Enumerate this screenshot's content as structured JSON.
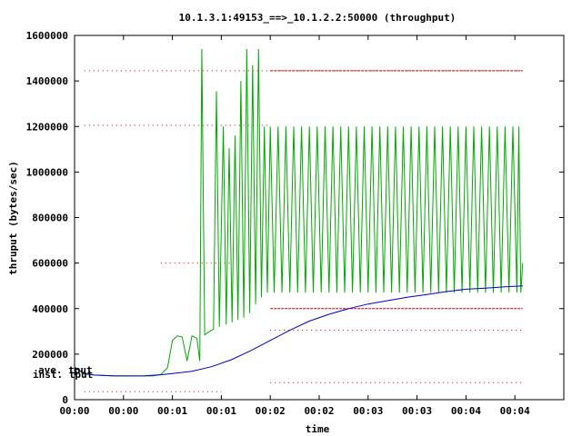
{
  "chart_data": {
    "type": "line",
    "title": "10.1.3.1:49153_==>_10.1.2.2:50000 (throughput)",
    "xlabel": "time",
    "ylabel": "thruput (bytes/sec)",
    "xlim": [
      0,
      5.0
    ],
    "ylim": [
      0,
      1600000
    ],
    "x_ticks": [
      {
        "v": 0.0,
        "label": "00:00"
      },
      {
        "v": 0.5,
        "label": "00:00"
      },
      {
        "v": 1.0,
        "label": "00:01"
      },
      {
        "v": 1.5,
        "label": "00:01"
      },
      {
        "v": 2.0,
        "label": "00:02"
      },
      {
        "v": 2.5,
        "label": "00:02"
      },
      {
        "v": 3.0,
        "label": "00:03"
      },
      {
        "v": 3.5,
        "label": "00:03"
      },
      {
        "v": 4.0,
        "label": "00:04"
      },
      {
        "v": 4.5,
        "label": "00:04"
      }
    ],
    "y_ticks": [
      {
        "v": 0,
        "label": "0"
      },
      {
        "v": 200000,
        "label": "200000"
      },
      {
        "v": 400000,
        "label": "400000"
      },
      {
        "v": 600000,
        "label": "600000"
      },
      {
        "v": 800000,
        "label": "800000"
      },
      {
        "v": 1000000,
        "label": "1000000"
      },
      {
        "v": 1200000,
        "label": "1200000"
      },
      {
        "v": 1400000,
        "label": "1400000"
      },
      {
        "v": 1600000,
        "label": "1600000"
      }
    ],
    "grid": false,
    "series": [
      {
        "name": "inst. tput",
        "color": "#00aa00",
        "style": "line",
        "points": [
          [
            0.0,
            145000
          ],
          [
            0.1,
            112000
          ],
          [
            0.2,
            108000
          ],
          [
            0.4,
            105000
          ],
          [
            0.6,
            104000
          ],
          [
            0.8,
            104000
          ],
          [
            0.88,
            110000
          ],
          [
            0.95,
            140000
          ],
          [
            1.0,
            260000
          ],
          [
            1.05,
            280000
          ],
          [
            1.1,
            275000
          ],
          [
            1.15,
            170000
          ],
          [
            1.2,
            280000
          ],
          [
            1.25,
            270000
          ],
          [
            1.28,
            170000
          ],
          [
            1.3,
            1540000
          ],
          [
            1.33,
            285000
          ],
          [
            1.38,
            300000
          ],
          [
            1.42,
            310000
          ],
          [
            1.45,
            1355000
          ],
          [
            1.48,
            320000
          ],
          [
            1.52,
            1200000
          ],
          [
            1.55,
            330000
          ],
          [
            1.58,
            1105000
          ],
          [
            1.61,
            340000
          ],
          [
            1.64,
            1160000
          ],
          [
            1.67,
            350000
          ],
          [
            1.7,
            1400000
          ],
          [
            1.73,
            360000
          ],
          [
            1.76,
            1540000
          ],
          [
            1.79,
            380000
          ],
          [
            1.82,
            1470000
          ],
          [
            1.85,
            420000
          ],
          [
            1.88,
            1540000
          ],
          [
            1.91,
            450000
          ],
          [
            1.94,
            1200000
          ],
          [
            1.97,
            470000
          ],
          [
            2.0,
            1200000
          ],
          [
            2.04,
            470000
          ],
          [
            2.08,
            1200000
          ],
          [
            2.12,
            470000
          ],
          [
            2.16,
            1200000
          ],
          [
            2.2,
            470000
          ],
          [
            2.24,
            1200000
          ],
          [
            2.28,
            470000
          ],
          [
            2.32,
            1200000
          ],
          [
            2.36,
            470000
          ],
          [
            2.4,
            1200000
          ],
          [
            2.44,
            470000
          ],
          [
            2.48,
            1200000
          ],
          [
            2.52,
            470000
          ],
          [
            2.56,
            1200000
          ],
          [
            2.6,
            470000
          ],
          [
            2.64,
            1200000
          ],
          [
            2.68,
            470000
          ],
          [
            2.72,
            1200000
          ],
          [
            2.76,
            470000
          ],
          [
            2.8,
            1200000
          ],
          [
            2.84,
            470000
          ],
          [
            2.88,
            1200000
          ],
          [
            2.92,
            470000
          ],
          [
            2.96,
            1200000
          ],
          [
            3.0,
            470000
          ],
          [
            3.04,
            1200000
          ],
          [
            3.08,
            470000
          ],
          [
            3.12,
            1200000
          ],
          [
            3.16,
            470000
          ],
          [
            3.2,
            1200000
          ],
          [
            3.24,
            470000
          ],
          [
            3.28,
            1200000
          ],
          [
            3.32,
            470000
          ],
          [
            3.36,
            1200000
          ],
          [
            3.4,
            470000
          ],
          [
            3.44,
            1200000
          ],
          [
            3.48,
            470000
          ],
          [
            3.52,
            1200000
          ],
          [
            3.56,
            470000
          ],
          [
            3.6,
            1200000
          ],
          [
            3.64,
            470000
          ],
          [
            3.68,
            1200000
          ],
          [
            3.72,
            470000
          ],
          [
            3.76,
            1200000
          ],
          [
            3.8,
            470000
          ],
          [
            3.84,
            1200000
          ],
          [
            3.88,
            470000
          ],
          [
            3.92,
            1200000
          ],
          [
            3.96,
            470000
          ],
          [
            4.0,
            1200000
          ],
          [
            4.04,
            470000
          ],
          [
            4.08,
            1200000
          ],
          [
            4.12,
            470000
          ],
          [
            4.16,
            1200000
          ],
          [
            4.2,
            470000
          ],
          [
            4.24,
            1200000
          ],
          [
            4.28,
            470000
          ],
          [
            4.32,
            1200000
          ],
          [
            4.36,
            470000
          ],
          [
            4.4,
            1200000
          ],
          [
            4.44,
            470000
          ],
          [
            4.48,
            1200000
          ],
          [
            4.52,
            470000
          ],
          [
            4.54,
            1200000
          ],
          [
            4.56,
            470000
          ],
          [
            4.58,
            600000
          ]
        ]
      },
      {
        "name": "ave. tput",
        "color": "#0000cc",
        "style": "line",
        "points": [
          [
            0.0,
            140000
          ],
          [
            0.1,
            115000
          ],
          [
            0.2,
            108000
          ],
          [
            0.4,
            104000
          ],
          [
            0.7,
            104000
          ],
          [
            0.9,
            110000
          ],
          [
            1.0,
            115000
          ],
          [
            1.2,
            125000
          ],
          [
            1.4,
            145000
          ],
          [
            1.6,
            175000
          ],
          [
            1.8,
            215000
          ],
          [
            2.0,
            260000
          ],
          [
            2.2,
            305000
          ],
          [
            2.4,
            345000
          ],
          [
            2.6,
            375000
          ],
          [
            2.8,
            400000
          ],
          [
            3.0,
            420000
          ],
          [
            3.2,
            435000
          ],
          [
            3.4,
            450000
          ],
          [
            3.6,
            462000
          ],
          [
            3.8,
            475000
          ],
          [
            4.0,
            485000
          ],
          [
            4.2,
            490000
          ],
          [
            4.4,
            496000
          ],
          [
            4.58,
            500000
          ]
        ]
      }
    ],
    "reference_lines": [
      {
        "color": "#cc0000",
        "y": 1445000,
        "x": [
          0.1,
          4.58
        ],
        "style": "dotted"
      },
      {
        "color": "#cc0000",
        "y": 1445000,
        "x": [
          2.0,
          4.58
        ],
        "style": "dashed"
      },
      {
        "color": "#cc0000",
        "y": 1205000,
        "x": [
          0.1,
          2.0
        ],
        "style": "dotted"
      },
      {
        "color": "#cc0000",
        "y": 600000,
        "x": [
          0.88,
          1.6
        ],
        "style": "dotted"
      },
      {
        "color": "#cc0000",
        "y": 400000,
        "x": [
          2.0,
          4.58
        ],
        "style": "dashed"
      },
      {
        "color": "#cc0000",
        "y": 305000,
        "x": [
          2.0,
          4.58
        ],
        "style": "dotted"
      },
      {
        "color": "#cc0000",
        "y": 75000,
        "x": [
          2.0,
          4.58
        ],
        "style": "dotted"
      },
      {
        "color": "#cc0000",
        "y": 35000,
        "x": [
          0.1,
          1.5
        ],
        "style": "dotted"
      }
    ],
    "legend": "left"
  }
}
